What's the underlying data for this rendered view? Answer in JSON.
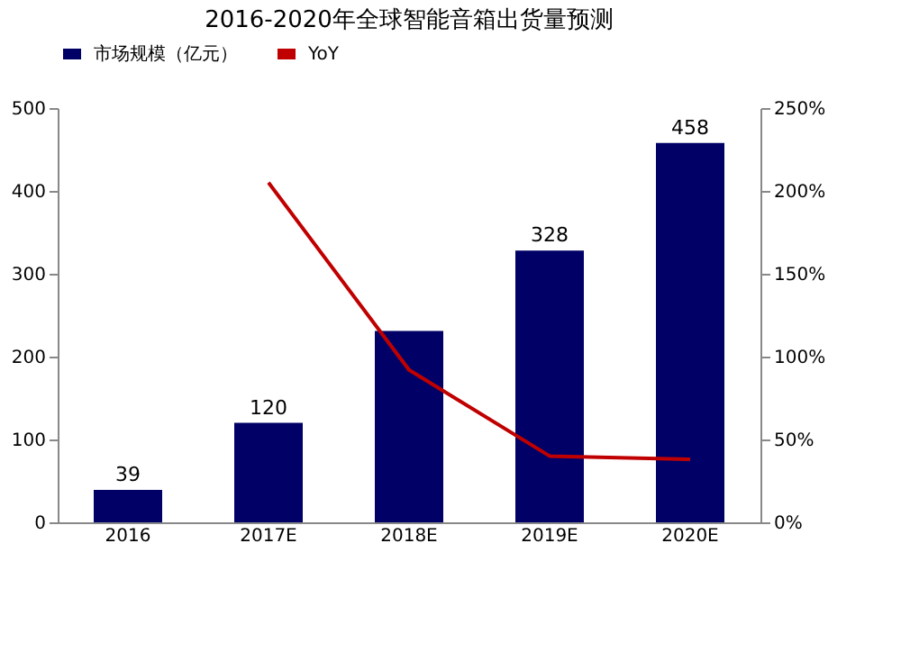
{
  "chart_data": {
    "type": "bar",
    "title": "2016-2020年全球智能音箱出货量预测",
    "categories": [
      "2016",
      "2017E",
      "2018E",
      "2019E",
      "2020E"
    ],
    "series": [
      {
        "name": "市场规模（亿元）",
        "color": "#000066",
        "values": [
          39,
          120,
          231,
          328,
          458
        ],
        "value_labels": [
          "39",
          "120",
          null,
          "328",
          "458"
        ]
      },
      {
        "name": "YoY",
        "type": "line",
        "axis": "y2",
        "color": "#c00000",
        "values": [
          null,
          205,
          92,
          40,
          38
        ]
      }
    ],
    "ylim": [
      0,
      500
    ],
    "yticks": [
      0,
      100,
      200,
      300,
      400,
      500
    ],
    "y2lim": [
      0,
      250
    ],
    "y2ticks": [
      {
        "value": 0,
        "label": "0%"
      },
      {
        "value": 50,
        "label": "50%"
      },
      {
        "value": 100,
        "label": "100%"
      },
      {
        "value": 150,
        "label": "150%"
      },
      {
        "value": 200,
        "label": "200%"
      },
      {
        "value": 250,
        "label": "250%"
      }
    ],
    "legend": "top",
    "grid": false,
    "marker": "none"
  }
}
